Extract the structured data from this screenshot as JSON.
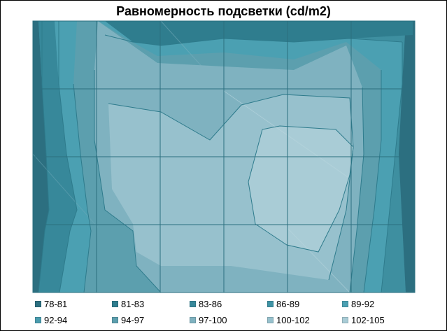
{
  "chart_data": {
    "type": "heatmap",
    "title": "Равномерность подсветки (cd/m2)",
    "ranges": [
      "78-81",
      "81-83",
      "83-86",
      "86-89",
      "89-92",
      "92-94",
      "94-97",
      "97-100",
      "100-102",
      "102-105"
    ],
    "colors": [
      "#2c6f80",
      "#2f7d8e",
      "#37889a",
      "#3e93a5",
      "#4ba0b2",
      "#4a9cae",
      "#5c9fae",
      "#7fb2c0",
      "#97c1cd",
      "#a9ccd6"
    ],
    "columns": 6,
    "rows": 4,
    "grid": true,
    "legend": "bottom",
    "xlabel": "",
    "ylabel": ""
  }
}
